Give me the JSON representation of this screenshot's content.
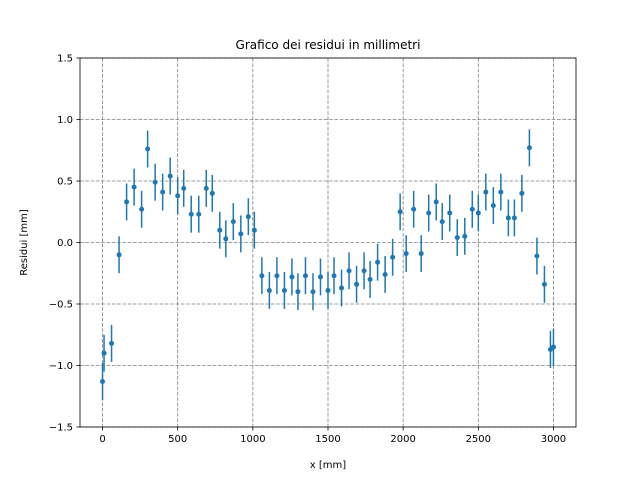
{
  "chart_data": {
    "type": "scatter",
    "title": "Grafico dei residui in millimetri",
    "xlabel": "x [mm]",
    "ylabel": "Residui [mm]",
    "xlim": [
      -150,
      3150
    ],
    "ylim": [
      -1.5,
      1.5
    ],
    "xticks": [
      0,
      500,
      1000,
      1500,
      2000,
      2500,
      3000
    ],
    "xtick_labels": [
      "0",
      "500",
      "1000",
      "1500",
      "2000",
      "2500",
      "3000"
    ],
    "yticks": [
      -1.5,
      -1.0,
      -0.5,
      0.0,
      0.5,
      1.0,
      1.5
    ],
    "ytick_labels": [
      "−1.5",
      "−1.0",
      "−0.5",
      "0.0",
      "0.5",
      "1.0",
      "1.5"
    ],
    "grid": true,
    "color": "#1f77b4",
    "error_bar": 0.15,
    "points": [
      {
        "x": 0,
        "y": -1.13
      },
      {
        "x": 10,
        "y": -0.9
      },
      {
        "x": 60,
        "y": -0.82
      },
      {
        "x": 110,
        "y": -0.1
      },
      {
        "x": 160,
        "y": 0.33
      },
      {
        "x": 210,
        "y": 0.45
      },
      {
        "x": 260,
        "y": 0.27
      },
      {
        "x": 300,
        "y": 0.76
      },
      {
        "x": 350,
        "y": 0.49
      },
      {
        "x": 400,
        "y": 0.41
      },
      {
        "x": 450,
        "y": 0.54
      },
      {
        "x": 500,
        "y": 0.38
      },
      {
        "x": 540,
        "y": 0.44
      },
      {
        "x": 590,
        "y": 0.23
      },
      {
        "x": 640,
        "y": 0.23
      },
      {
        "x": 690,
        "y": 0.44
      },
      {
        "x": 730,
        "y": 0.4
      },
      {
        "x": 780,
        "y": 0.1
      },
      {
        "x": 820,
        "y": 0.03
      },
      {
        "x": 870,
        "y": 0.17
      },
      {
        "x": 920,
        "y": 0.07
      },
      {
        "x": 970,
        "y": 0.21
      },
      {
        "x": 1010,
        "y": 0.1
      },
      {
        "x": 1060,
        "y": -0.27
      },
      {
        "x": 1110,
        "y": -0.39
      },
      {
        "x": 1160,
        "y": -0.27
      },
      {
        "x": 1210,
        "y": -0.39
      },
      {
        "x": 1260,
        "y": -0.28
      },
      {
        "x": 1300,
        "y": -0.4
      },
      {
        "x": 1350,
        "y": -0.27
      },
      {
        "x": 1400,
        "y": -0.4
      },
      {
        "x": 1450,
        "y": -0.28
      },
      {
        "x": 1500,
        "y": -0.39
      },
      {
        "x": 1540,
        "y": -0.27
      },
      {
        "x": 1590,
        "y": -0.37
      },
      {
        "x": 1640,
        "y": -0.23
      },
      {
        "x": 1690,
        "y": -0.34
      },
      {
        "x": 1740,
        "y": -0.23
      },
      {
        "x": 1780,
        "y": -0.3
      },
      {
        "x": 1830,
        "y": -0.16
      },
      {
        "x": 1880,
        "y": -0.26
      },
      {
        "x": 1930,
        "y": -0.12
      },
      {
        "x": 1980,
        "y": 0.25
      },
      {
        "x": 2020,
        "y": -0.09
      },
      {
        "x": 2070,
        "y": 0.27
      },
      {
        "x": 2120,
        "y": -0.09
      },
      {
        "x": 2170,
        "y": 0.24
      },
      {
        "x": 2220,
        "y": 0.33
      },
      {
        "x": 2260,
        "y": 0.17
      },
      {
        "x": 2310,
        "y": 0.24
      },
      {
        "x": 2360,
        "y": 0.04
      },
      {
        "x": 2410,
        "y": 0.05
      },
      {
        "x": 2460,
        "y": 0.27
      },
      {
        "x": 2500,
        "y": 0.24
      },
      {
        "x": 2550,
        "y": 0.41
      },
      {
        "x": 2600,
        "y": 0.3
      },
      {
        "x": 2650,
        "y": 0.41
      },
      {
        "x": 2700,
        "y": 0.2
      },
      {
        "x": 2740,
        "y": 0.2
      },
      {
        "x": 2790,
        "y": 0.4
      },
      {
        "x": 2840,
        "y": 0.77
      },
      {
        "x": 2890,
        "y": -0.11
      },
      {
        "x": 2940,
        "y": -0.34
      },
      {
        "x": 2980,
        "y": -0.87
      },
      {
        "x": 3000,
        "y": -0.85
      }
    ]
  }
}
